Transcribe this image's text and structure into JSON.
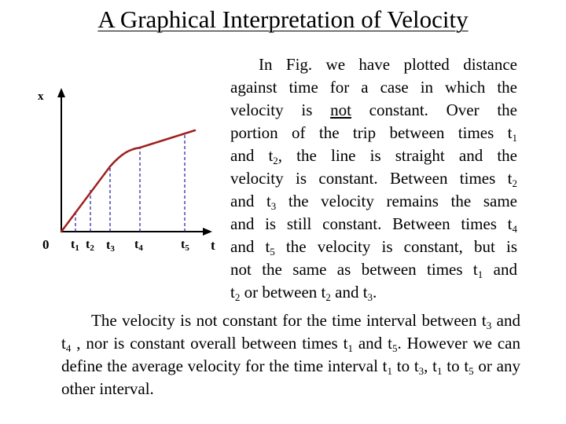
{
  "title": "A Graphical Interpretation of Velocity",
  "graph": {
    "y_axis_label": "x",
    "x_axis_label": "t",
    "origin_label": "0",
    "tick_labels": [
      "t1",
      "t2",
      "t3",
      "t4",
      "t5"
    ],
    "curve_color": "#a02020",
    "guide_color": "#1a1aa0"
  },
  "paragraph1": "In Fig. we have plotted distance against time for a case in which the velocity is not constant. Over the portion of the trip between times t1 and t2, the line is straight and the velocity is constant. Between times t2 and t3 the velocity remains the same and is still constant. Between times t4 and t5 the velocity is constant, but is not the same as between times t1 and t2 or between t2 and t3.",
  "paragraph2": "The velocity is not constant for the time interval between t3 and t4 , nor is constant overall between times t1 and t5. However we can define the average velocity for the time interval t1 to t3, t1 to t5 or any other interval."
}
